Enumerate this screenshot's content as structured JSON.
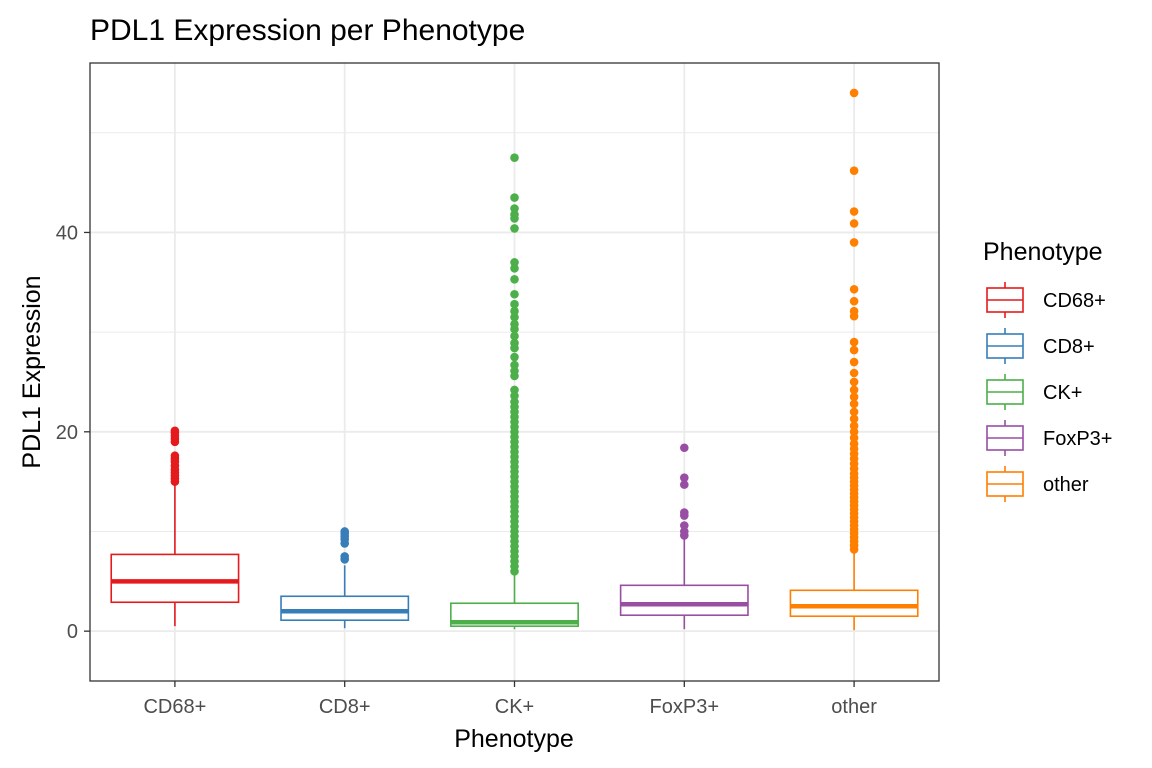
{
  "chart_data": {
    "type": "box",
    "title": "PDL1 Expression per Phenotype",
    "xlabel": "Phenotype",
    "ylabel": "PDL1 Expression",
    "ylim": [
      -5,
      57
    ],
    "yticks": [
      0,
      20,
      40
    ],
    "grid": true,
    "legend": {
      "title": "Phenotype",
      "position": "right"
    },
    "categories": [
      "CD68+",
      "CD8+",
      "CK+",
      "FoxP3+",
      "other"
    ],
    "series": [
      {
        "name": "CD68+",
        "color": "#e41a1c",
        "min": 0.5,
        "q1": 2.9,
        "median": 5.0,
        "q3": 7.7,
        "max": 14.8,
        "outliers": [
          15.0,
          15.3,
          15.6,
          15.9,
          16.2,
          16.6,
          17.0,
          17.3,
          17.6,
          19.0,
          19.3,
          19.6,
          19.9,
          20.1
        ]
      },
      {
        "name": "CD8+",
        "color": "#377eb8",
        "min": 0.3,
        "q1": 1.1,
        "median": 2.0,
        "q3": 3.5,
        "max": 6.6,
        "outliers": [
          7.2,
          7.5,
          8.8,
          9.2,
          9.5,
          9.8,
          10.0
        ]
      },
      {
        "name": "CK+",
        "color": "#4daf4a",
        "min": 0.2,
        "q1": 0.5,
        "median": 0.9,
        "q3": 2.8,
        "max": 5.8,
        "outliers": [
          6.0,
          6.5,
          7.0,
          7.5,
          8.0,
          8.5,
          9.0,
          9.5,
          10.0,
          10.5,
          11.0,
          11.5,
          12.0,
          12.5,
          13.0,
          13.5,
          14.0,
          14.5,
          15.0,
          15.5,
          16.0,
          16.5,
          17.0,
          17.5,
          18.0,
          18.5,
          19.0,
          19.5,
          20.0,
          20.5,
          21.0,
          21.5,
          22.0,
          22.5,
          23.0,
          23.6,
          24.2,
          25.6,
          26.1,
          26.7,
          27.5,
          28.4,
          28.9,
          29.6,
          30.3,
          30.8,
          31.5,
          32.1,
          32.8,
          33.8,
          35.3,
          36.4,
          37.0,
          40.4,
          41.4,
          41.8,
          42.4,
          43.5,
          47.5
        ]
      },
      {
        "name": "FoxP3+",
        "color": "#984ea3",
        "min": 0.2,
        "q1": 1.6,
        "median": 2.7,
        "q3": 4.6,
        "max": 9.2,
        "outliers": [
          9.6,
          10.0,
          10.6,
          11.6,
          11.9,
          14.7,
          15.4,
          18.4
        ]
      },
      {
        "name": "other",
        "color": "#ff7f00",
        "min": 0.1,
        "q1": 1.5,
        "median": 2.5,
        "q3": 4.1,
        "max": 8.0,
        "outliers": [
          8.2,
          8.6,
          9.0,
          9.4,
          9.8,
          10.2,
          10.6,
          11.0,
          11.4,
          11.8,
          12.2,
          12.6,
          13.0,
          13.4,
          13.8,
          14.2,
          14.6,
          15.0,
          15.4,
          15.8,
          16.3,
          16.8,
          17.3,
          17.8,
          18.3,
          18.8,
          19.4,
          20.0,
          20.6,
          21.3,
          22.0,
          22.8,
          23.5,
          24.2,
          25.0,
          25.9,
          27.0,
          28.2,
          29.0,
          31.6,
          32.1,
          33.1,
          34.3,
          39.0,
          40.9,
          42.1,
          46.2,
          54.0
        ]
      }
    ]
  }
}
